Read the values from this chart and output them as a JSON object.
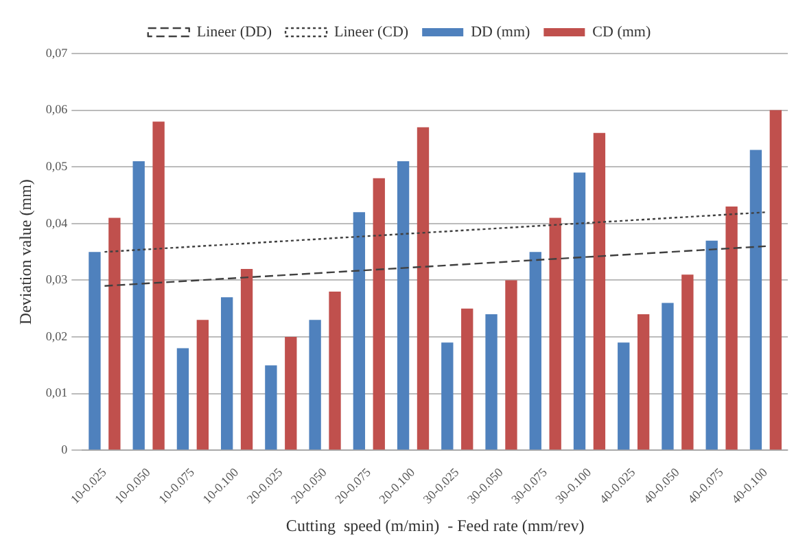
{
  "chart_data": {
    "type": "bar",
    "xlabel": "Cutting  speed (m/min)  - Feed rate (mm/rev)",
    "ylabel": "Deviation value (mm)",
    "categories": [
      "10-0.025",
      "10-0.050",
      "10-0.075",
      "10-0.100",
      "20-0.025",
      "20-0.050",
      "20-0.075",
      "20-0.100",
      "30-0.025",
      "30-0.050",
      "30-0.075",
      "30-0.100",
      "40-0.025",
      "40-0.050",
      "40-0.075",
      "40-0.100"
    ],
    "series": [
      {
        "name": "DD (mm)",
        "color": "#4f81bd",
        "values": [
          0.035,
          0.051,
          0.018,
          0.027,
          0.015,
          0.023,
          0.042,
          0.051,
          0.019,
          0.024,
          0.035,
          0.049,
          0.019,
          0.026,
          0.037,
          0.053
        ]
      },
      {
        "name": "CD (mm)",
        "color": "#c0504d",
        "values": [
          0.041,
          0.058,
          0.023,
          0.032,
          0.02,
          0.028,
          0.048,
          0.057,
          0.025,
          0.03,
          0.041,
          0.056,
          0.024,
          0.031,
          0.043,
          0.06
        ]
      },
      {
        "name": "Lineer (DD)",
        "type": "line",
        "color": "#404040",
        "line_style": "dashed",
        "x": [
          "10-0.025",
          "40-0.100"
        ],
        "values": [
          0.029,
          0.036
        ]
      },
      {
        "name": "Lineer (CD)",
        "type": "line",
        "color": "#404040",
        "line_style": "dotted",
        "x": [
          "10-0.025",
          "40-0.100"
        ],
        "values": [
          0.035,
          0.042
        ]
      }
    ],
    "ylim": [
      0,
      0.07
    ],
    "yticks": [
      {
        "value": 0,
        "label": "0"
      },
      {
        "value": 0.01,
        "label": "0,01"
      },
      {
        "value": 0.02,
        "label": "0,02"
      },
      {
        "value": 0.03,
        "label": "0,03"
      },
      {
        "value": 0.04,
        "label": "0,04"
      },
      {
        "value": 0.05,
        "label": "0,05"
      },
      {
        "value": 0.06,
        "label": "0,06"
      },
      {
        "value": 0.07,
        "label": "0,07"
      }
    ],
    "grid": "y",
    "legend": "top"
  }
}
